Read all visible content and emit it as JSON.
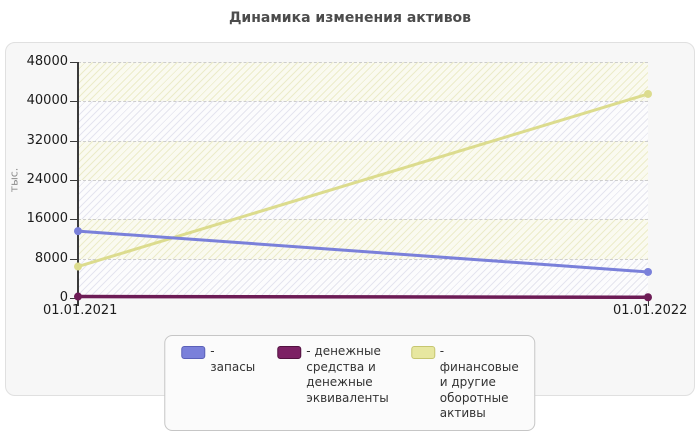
{
  "title": "Динамика изменения активов",
  "y_axis": {
    "unit_label": "тыс.",
    "ticks": [
      "48000",
      "40000",
      "32000",
      "24000",
      "16000",
      "8000",
      "0"
    ]
  },
  "x_axis": {
    "labels": [
      "01.01.2021",
      "01.01.2022"
    ]
  },
  "legend": {
    "items": [
      {
        "label": "- запасы",
        "color": "#7a80da",
        "border": "#5a60b8"
      },
      {
        "label": "- денежные средства и денежные эквиваленты",
        "color": "#7c2164",
        "border": "#521240"
      },
      {
        "label": "- финансовые и другие оборотные активы",
        "color": "#e7e7a0",
        "border": "#c6c670"
      }
    ]
  },
  "chart_data": {
    "type": "line",
    "title": "Динамика изменения активов",
    "x": [
      "01.01.2021",
      "01.01.2022"
    ],
    "ylabel": "тыс.",
    "ylim": [
      0,
      48000
    ],
    "y_tick_step": 8000,
    "grid": "horizontal-dashed",
    "legend_position": "bottom",
    "background": "alternating hatched bands",
    "series": [
      {
        "name": "запасы",
        "values": [
          13600,
          5300
        ],
        "color": "#7a80da",
        "z": 2,
        "width": 3
      },
      {
        "name": "денежные средства и денежные эквиваленты",
        "values": [
          300,
          150
        ],
        "color": "#6d1c56",
        "z": 3,
        "width": 3.5
      },
      {
        "name": "финансовые и другие оборотные активы",
        "values": [
          6400,
          41500
        ],
        "color": "#dcdc8e",
        "z": 1,
        "width": 3
      }
    ]
  }
}
